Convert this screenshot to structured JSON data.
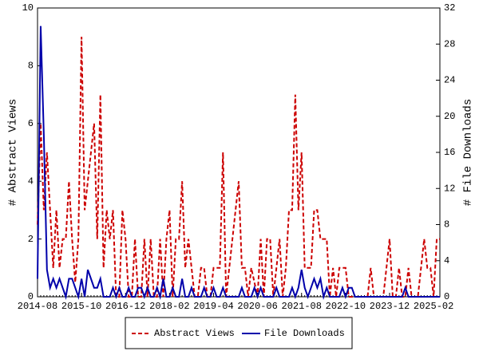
{
  "chart_data": {
    "type": "line",
    "x": [
      "2014-08",
      "2014-09",
      "2014-10",
      "2014-11",
      "2014-12",
      "2015-01",
      "2015-02",
      "2015-03",
      "2015-04",
      "2015-05",
      "2015-06",
      "2015-07",
      "2015-08",
      "2015-09",
      "2015-10",
      "2015-11",
      "2015-12",
      "2016-01",
      "2016-02",
      "2016-03",
      "2016-04",
      "2016-05",
      "2016-06",
      "2016-07",
      "2016-08",
      "2016-09",
      "2016-10",
      "2016-11",
      "2016-12",
      "2017-01",
      "2017-02",
      "2017-03",
      "2017-04",
      "2017-05",
      "2017-06",
      "2017-07",
      "2017-08",
      "2017-09",
      "2017-10",
      "2017-11",
      "2017-12",
      "2018-01",
      "2018-02",
      "2018-03",
      "2018-04",
      "2018-05",
      "2018-06",
      "2018-07",
      "2018-08",
      "2018-09",
      "2018-10",
      "2018-11",
      "2018-12",
      "2019-01",
      "2019-02",
      "2019-03",
      "2019-04",
      "2019-05",
      "2019-06",
      "2019-07",
      "2019-08",
      "2019-09",
      "2019-10",
      "2019-11",
      "2019-12",
      "2020-01",
      "2020-02",
      "2020-03",
      "2020-04",
      "2020-05",
      "2020-06",
      "2020-07",
      "2020-08",
      "2020-09",
      "2020-10",
      "2020-11",
      "2020-12",
      "2021-01",
      "2021-02",
      "2021-03",
      "2021-04",
      "2021-05",
      "2021-06",
      "2021-07",
      "2021-08",
      "2021-09",
      "2021-10",
      "2021-11",
      "2021-12",
      "2022-01",
      "2022-02",
      "2022-03",
      "2022-04",
      "2022-05",
      "2022-06",
      "2022-07",
      "2022-08",
      "2022-09",
      "2022-10",
      "2022-11",
      "2022-12",
      "2023-01",
      "2023-02",
      "2023-03",
      "2023-04",
      "2023-05",
      "2023-06",
      "2023-07",
      "2023-08",
      "2023-09",
      "2023-10",
      "2023-11",
      "2023-12",
      "2024-01",
      "2024-02",
      "2024-03",
      "2024-04",
      "2024-05",
      "2024-06",
      "2024-07",
      "2024-08",
      "2024-09",
      "2024-10",
      "2024-11",
      "2024-12",
      "2025-01",
      "2025-02",
      "2025-03",
      "2025-04"
    ],
    "xticks": [
      "2014-08",
      "2015-10",
      "2016-12",
      "2018-02",
      "2019-04",
      "2020-06",
      "2021-08",
      "2022-10",
      "2023-12",
      "2025-02"
    ],
    "ylabel": "# Abstract Views",
    "y2label": "# File Downloads",
    "ylim": [
      0,
      10
    ],
    "yticks": [
      0,
      2,
      4,
      6,
      8,
      10
    ],
    "y2lim": [
      0,
      32
    ],
    "y2ticks": [
      0,
      4,
      8,
      12,
      16,
      20,
      24,
      28,
      32
    ],
    "legend": "bottom",
    "series": [
      {
        "name": "Abstract Views",
        "color": "#cc0000",
        "dashed": true,
        "axis": "y",
        "values": [
          2.5,
          6,
          3,
          5,
          3,
          1,
          3,
          1,
          2,
          2,
          4,
          2,
          0.5,
          2,
          9,
          3,
          4,
          5,
          6,
          2,
          7,
          1,
          3,
          2,
          3,
          0,
          0,
          3,
          2,
          0,
          0,
          2,
          0,
          0,
          2,
          0,
          2,
          0,
          0,
          2,
          0,
          2,
          3,
          0,
          2,
          2,
          4,
          1,
          2,
          1,
          0,
          0,
          1,
          1,
          0,
          0,
          1,
          1,
          1,
          5,
          0,
          1,
          2,
          3,
          4,
          1,
          1,
          0,
          1,
          0.5,
          0,
          2,
          0,
          2,
          2,
          0,
          1,
          2,
          0,
          1,
          3,
          3,
          7,
          3,
          5,
          1,
          1,
          1,
          3,
          3,
          2,
          2,
          2,
          0,
          1,
          0,
          1,
          1,
          1,
          0,
          0,
          0,
          0,
          0,
          0,
          0,
          1,
          0,
          0,
          0,
          0,
          1,
          2,
          0,
          0,
          1,
          0,
          0,
          1,
          0,
          0,
          0,
          1,
          2,
          1,
          1,
          0,
          2,
          2
        ]
      },
      {
        "name": "File Downloads",
        "color": "#0000aa",
        "dashed": false,
        "axis": "y2",
        "values": [
          2,
          30,
          18,
          3,
          1,
          2,
          1,
          2,
          1,
          0,
          2,
          2,
          1,
          0,
          2,
          0,
          3,
          2,
          1,
          1,
          2,
          0,
          0,
          0,
          1,
          0,
          1,
          0,
          0,
          1,
          0,
          0,
          1,
          1,
          0,
          1,
          0,
          0,
          1,
          0,
          2,
          0,
          0,
          1,
          0,
          0,
          2,
          0,
          0,
          1,
          0,
          0,
          0,
          1,
          0,
          0,
          1,
          0,
          0,
          1,
          0,
          0,
          0,
          0,
          0,
          1,
          0,
          0,
          0,
          1,
          0,
          1,
          0,
          0,
          0,
          0,
          1,
          0,
          0,
          0,
          0,
          1,
          0,
          1,
          3,
          1,
          0,
          1,
          2,
          1,
          2,
          0,
          1,
          0,
          0,
          0,
          0,
          1,
          0,
          1,
          1,
          0,
          0,
          0,
          0,
          0,
          0,
          0,
          0,
          0,
          0,
          0,
          0,
          0,
          0,
          0,
          0,
          1,
          0,
          0,
          0,
          0,
          0,
          0,
          0,
          0,
          0,
          0,
          0
        ]
      }
    ]
  }
}
